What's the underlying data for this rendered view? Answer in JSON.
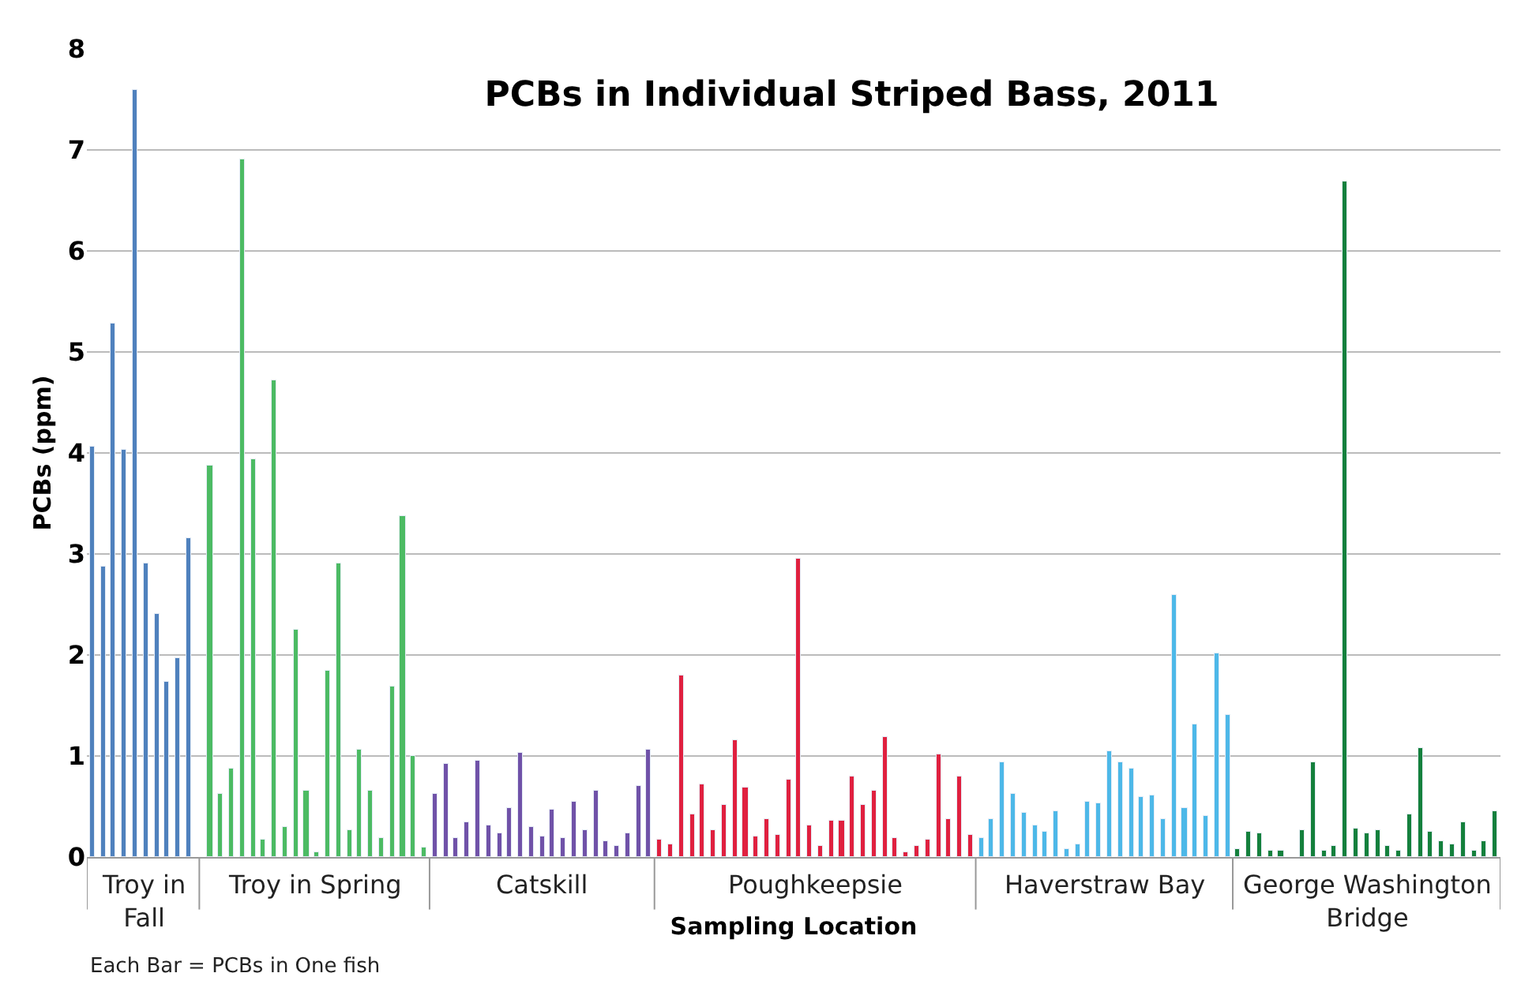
{
  "chart_data": {
    "type": "bar",
    "title": "PCBs in Individual Striped Bass, 2011",
    "xlabel": "Sampling Location",
    "ylabel": "PCBs (ppm)",
    "categories": [
      null,
      null,
      null,
      null,
      null,
      null,
      null,
      null,
      null,
      null,
      null,
      null,
      null,
      null,
      null,
      null,
      null,
      null,
      null,
      null,
      null,
      null,
      null,
      null,
      null,
      null,
      null,
      null,
      null,
      null,
      null,
      null,
      null,
      null,
      null,
      null,
      null,
      null,
      null,
      null,
      null,
      null,
      null,
      null,
      null,
      null,
      null,
      null,
      null,
      null,
      null,
      null,
      null,
      null,
      null,
      null,
      null,
      null,
      null,
      null,
      null,
      null,
      null,
      null,
      null,
      null,
      null,
      null,
      null,
      null,
      null,
      null,
      null,
      null,
      null,
      null,
      null,
      null,
      null,
      null,
      null,
      null,
      null,
      null,
      null,
      null,
      null,
      null,
      null,
      null,
      null,
      null,
      null,
      null,
      null,
      null,
      null,
      null,
      null,
      null,
      null,
      null,
      null,
      null,
      null,
      null,
      null,
      null,
      null,
      null,
      null,
      null,
      null,
      null,
      null,
      null,
      null,
      null,
      null,
      null,
      null,
      null,
      null,
      null,
      null,
      null,
      null,
      null,
      null,
      null,
      null,
      null
    ],
    "series": [
      {
        "name": "Troy in Fall",
        "color": "#4f81bd",
        "values": [
          4.07,
          2.87,
          5.28,
          4.03,
          7.6,
          2.9,
          2.4,
          1.73,
          1.97,
          3.16,
          null,
          null,
          null,
          null,
          null,
          null,
          null,
          null,
          null,
          null,
          null,
          null,
          null,
          null,
          null,
          null,
          null,
          null,
          null,
          null,
          null,
          null,
          null,
          null,
          null,
          null,
          null,
          null,
          null,
          null,
          null,
          null,
          null,
          null,
          null,
          null,
          null,
          null,
          null,
          null,
          null,
          null,
          null,
          null,
          null,
          null,
          null,
          null,
          null,
          null,
          null,
          null,
          null,
          null,
          null,
          null,
          null,
          null,
          null,
          null,
          null,
          null,
          null,
          null,
          null,
          null,
          null,
          null,
          null,
          null,
          null,
          null,
          null,
          null,
          null,
          null,
          null,
          null,
          null,
          null,
          null,
          null,
          null,
          null,
          null,
          null,
          null,
          null,
          null,
          null,
          null,
          null,
          null,
          null,
          null,
          null,
          null,
          null,
          null,
          null,
          null,
          null,
          null,
          null,
          null,
          null,
          null,
          null,
          null,
          null,
          null,
          null,
          null,
          null,
          null,
          null,
          null,
          null,
          null,
          null,
          null,
          null
        ]
      },
      {
        "name": "Troy in Spring",
        "color": "#4cbb63",
        "values": [
          null,
          null,
          null,
          null,
          null,
          null,
          null,
          null,
          null,
          null,
          null,
          3.88,
          0.62,
          0.88,
          6.9,
          3.93,
          0.17,
          4.72,
          0.3,
          2.25,
          0.65,
          0.05,
          1.85,
          2.91,
          0.27,
          1.06,
          0.66,
          0.19,
          1.68,
          3.37,
          1.0,
          0.09,
          null,
          null,
          null,
          null,
          null,
          null,
          null,
          null,
          null,
          null,
          null,
          null,
          null,
          null,
          null,
          null,
          null,
          null,
          null,
          null,
          null,
          null,
          null,
          null,
          null,
          null,
          null,
          null,
          null,
          null,
          null,
          null,
          null,
          null,
          null,
          null,
          null,
          null,
          null,
          null,
          null,
          null,
          null,
          null,
          null,
          null,
          null,
          null,
          null,
          null,
          null,
          null,
          null,
          null,
          null,
          null,
          null,
          null,
          null,
          null,
          null,
          null,
          null,
          null,
          null,
          null,
          null,
          null,
          null,
          null,
          null,
          null,
          null,
          null,
          null,
          null,
          null,
          null,
          null,
          null,
          null,
          null,
          null,
          null,
          null,
          null,
          null,
          null,
          null,
          null,
          null,
          null,
          null,
          null,
          null,
          null,
          null,
          null,
          null,
          null
        ]
      },
      {
        "name": "Catskill",
        "color": "#7052a8",
        "values": [
          null,
          null,
          null,
          null,
          null,
          null,
          null,
          null,
          null,
          null,
          null,
          null,
          null,
          null,
          null,
          null,
          null,
          null,
          null,
          null,
          null,
          null,
          null,
          null,
          null,
          null,
          null,
          null,
          null,
          null,
          null,
          null,
          0.62,
          0.92,
          0.19,
          0.34,
          0.96,
          0.31,
          0.23,
          0.49,
          1.03,
          0.3,
          0.21,
          0.47,
          0.19,
          0.54,
          0.26,
          0.66,
          0.16,
          0.11,
          0.23,
          0.71,
          1.06,
          null,
          null,
          null,
          null,
          null,
          null,
          null,
          null,
          null,
          null,
          null,
          null,
          null,
          null,
          null,
          null,
          null,
          null,
          null,
          null,
          null,
          null,
          null,
          null,
          null,
          null,
          null,
          null,
          null,
          null,
          null,
          null,
          null,
          null,
          null,
          null,
          null,
          null,
          null,
          null,
          null,
          null,
          null,
          null,
          null,
          null,
          null,
          null,
          null,
          null,
          null,
          null,
          null,
          null,
          null,
          null,
          null,
          null,
          null,
          null,
          null,
          null,
          null,
          null,
          null,
          null,
          null,
          null,
          null,
          null,
          null,
          null,
          null,
          null,
          null,
          null,
          null,
          null,
          null
        ]
      },
      {
        "name": "Poughkeepsie",
        "color": "#e0203f",
        "values": [
          null,
          null,
          null,
          null,
          null,
          null,
          null,
          null,
          null,
          null,
          null,
          null,
          null,
          null,
          null,
          null,
          null,
          null,
          null,
          null,
          null,
          null,
          null,
          null,
          null,
          null,
          null,
          null,
          null,
          null,
          null,
          null,
          null,
          null,
          null,
          null,
          null,
          null,
          null,
          null,
          null,
          null,
          null,
          null,
          null,
          null,
          null,
          null,
          null,
          null,
          null,
          null,
          null,
          0.17,
          0.13,
          1.79,
          0.42,
          0.72,
          0.27,
          0.51,
          1.16,
          0.68,
          0.21,
          0.37,
          0.22,
          0.76,
          2.95,
          0.31,
          0.11,
          0.36,
          0.36,
          0.79,
          0.51,
          0.65,
          1.18,
          0.18,
          0.05,
          0.11,
          0.17,
          1.02,
          0.37,
          0.79,
          0.22,
          null,
          null,
          null,
          null,
          null,
          null,
          null,
          null,
          null,
          null,
          null,
          null,
          null,
          null,
          null,
          null,
          null,
          null,
          null,
          null,
          null,
          null,
          null,
          null,
          null,
          null,
          null,
          null,
          null,
          null,
          null,
          null,
          null,
          null,
          null,
          null,
          null,
          null,
          null,
          null,
          null,
          null,
          null,
          null,
          null,
          null,
          null,
          null,
          null
        ]
      },
      {
        "name": "Haverstraw Bay",
        "color": "#4db8e8",
        "values": [
          null,
          null,
          null,
          null,
          null,
          null,
          null,
          null,
          null,
          null,
          null,
          null,
          null,
          null,
          null,
          null,
          null,
          null,
          null,
          null,
          null,
          null,
          null,
          null,
          null,
          null,
          null,
          null,
          null,
          null,
          null,
          null,
          null,
          null,
          null,
          null,
          null,
          null,
          null,
          null,
          null,
          null,
          null,
          null,
          null,
          null,
          null,
          null,
          null,
          null,
          null,
          null,
          null,
          null,
          null,
          null,
          null,
          null,
          null,
          null,
          null,
          null,
          null,
          null,
          null,
          null,
          null,
          null,
          null,
          null,
          null,
          null,
          null,
          null,
          null,
          null,
          null,
          null,
          null,
          null,
          null,
          null,
          null,
          0.19,
          0.38,
          0.93,
          0.63,
          0.43,
          0.32,
          0.25,
          0.46,
          0.08,
          0.13,
          0.55,
          0.53,
          1.05,
          0.93,
          0.88,
          0.6,
          0.61,
          0.37,
          2.6,
          0.48,
          1.31,
          0.4,
          2.02,
          1.41,
          null,
          null,
          null,
          null,
          null,
          null,
          null,
          null,
          null,
          null,
          null,
          null,
          null,
          null,
          null,
          null,
          null,
          null,
          null,
          null,
          null,
          null,
          null,
          null,
          null
        ]
      },
      {
        "name": "George Washington Bridge",
        "color": "#14803c",
        "values": [
          null,
          null,
          null,
          null,
          null,
          null,
          null,
          null,
          null,
          null,
          null,
          null,
          null,
          null,
          null,
          null,
          null,
          null,
          null,
          null,
          null,
          null,
          null,
          null,
          null,
          null,
          null,
          null,
          null,
          null,
          null,
          null,
          null,
          null,
          null,
          null,
          null,
          null,
          null,
          null,
          null,
          null,
          null,
          null,
          null,
          null,
          null,
          null,
          null,
          null,
          null,
          null,
          null,
          null,
          null,
          null,
          null,
          null,
          null,
          null,
          null,
          null,
          null,
          null,
          null,
          null,
          null,
          null,
          null,
          null,
          null,
          null,
          null,
          null,
          null,
          null,
          null,
          null,
          null,
          null,
          null,
          null,
          null,
          null,
          null,
          null,
          null,
          null,
          null,
          null,
          null,
          null,
          null,
          null,
          null,
          null,
          null,
          null,
          null,
          null,
          null,
          null,
          null,
          null,
          null,
          null,
          null,
          0.08,
          0.25,
          0.24,
          0.07,
          0.07,
          null,
          0.27,
          0.93,
          0.07,
          0.11,
          6.68,
          0.28,
          0.23,
          0.27,
          0.11,
          0.07,
          0.42,
          1.08,
          0.25,
          0.16,
          0.13,
          0.34,
          0.07,
          0.15,
          0.46
        ]
      }
    ],
    "ylim": [
      0,
      8
    ],
    "yticks": [
      0,
      1,
      2,
      3,
      4,
      5,
      6,
      7,
      8
    ],
    "grid": "y",
    "legend": false,
    "annotations": [
      "Each Bar = PCBs in One fish"
    ]
  }
}
